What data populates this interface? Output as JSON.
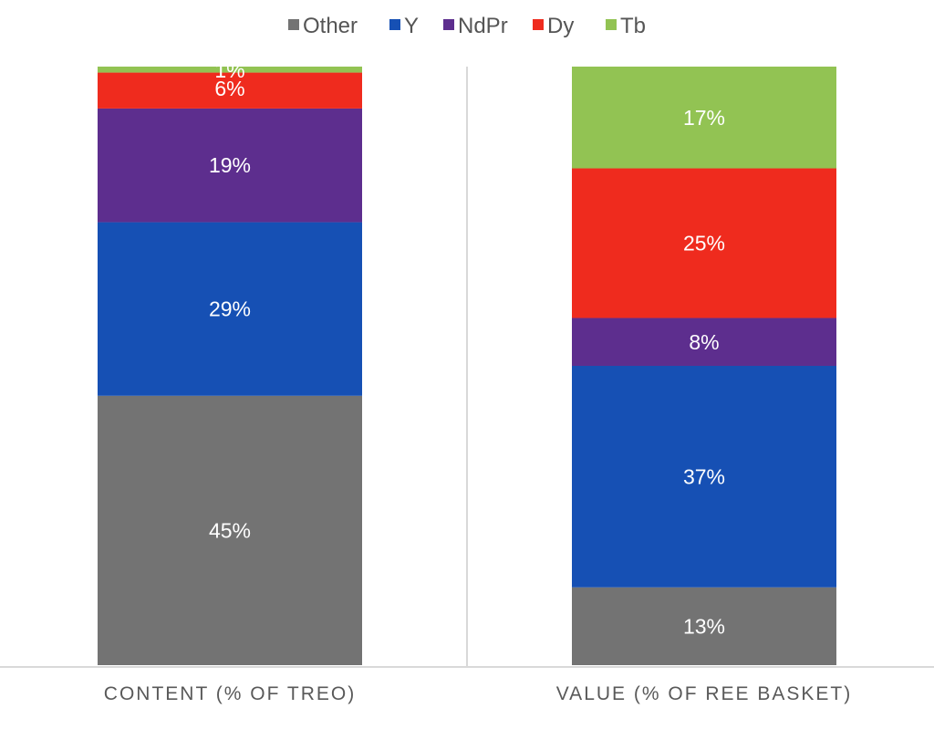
{
  "chart_data": {
    "type": "bar",
    "stacked": true,
    "categories": [
      "CONTENT (% OF TREO)",
      "VALUE (% OF REE BASKET)"
    ],
    "series": [
      {
        "name": "Other",
        "color": "#737373",
        "values": [
          45,
          13
        ]
      },
      {
        "name": "Y",
        "color": "#1650b4",
        "values": [
          29,
          37
        ]
      },
      {
        "name": "NdPr",
        "color": "#5d2e8e",
        "values": [
          19,
          8
        ]
      },
      {
        "name": "Dy",
        "color": "#ef2b1e",
        "values": [
          6,
          25
        ]
      },
      {
        "name": "Tb",
        "color": "#92c353",
        "values": [
          1,
          17
        ]
      }
    ],
    "data_label_format": "{v}%",
    "ylim": [
      0,
      100
    ],
    "grid": false,
    "legend": "top"
  }
}
